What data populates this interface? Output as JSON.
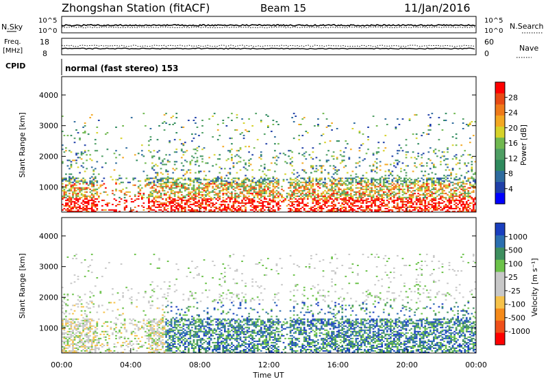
{
  "header": {
    "station": "Zhongshan Station (fitACF)",
    "beam": "Beam 15",
    "date": "11/Jan/2016"
  },
  "top_panels": {
    "nsky_label": "N.Sky",
    "nsky_ticks": [
      "10^5",
      "10^0"
    ],
    "nsearch_label": "N.Search",
    "nsearch_ticks": [
      "10^5",
      "10^0"
    ],
    "freq_label_1": "Freq.",
    "freq_label_2": "[MHz]",
    "freq_ticks": [
      "18",
      "8"
    ],
    "nave_label": "Nave",
    "nave_ticks": [
      "60",
      "0"
    ],
    "cpid_label": "CPID",
    "cpid_text": "normal (fast stereo) 153"
  },
  "chart_data": [
    {
      "type": "heatmap",
      "name": "power",
      "ylabel": "Slant Range [km]",
      "yticks": [
        1000,
        2000,
        3000,
        4000
      ],
      "ylim": [
        180,
        4600
      ],
      "xlim_hours": [
        0,
        24
      ],
      "colorbar_label": "Power [dB]",
      "colorbar_ticks": [
        "28",
        "24",
        "20",
        "16",
        "12",
        "8",
        "4"
      ],
      "colorbar_colors": [
        "#0000ff",
        "#1f3fa8",
        "#2e6b9e",
        "#2f8a5e",
        "#4e9e63",
        "#70b850",
        "#d6d22a",
        "#f3a822",
        "#ef7a1a",
        "#e84a14",
        "#ff0000"
      ]
    },
    {
      "type": "heatmap",
      "name": "velocity",
      "ylabel": "Slant Range [km]",
      "yticks": [
        1000,
        2000,
        3000,
        4000
      ],
      "ylim": [
        180,
        4600
      ],
      "xlim_hours": [
        0,
        24
      ],
      "xlabel": "Time UT",
      "xticks": [
        "00:00",
        "04:00",
        "08:00",
        "12:00",
        "16:00",
        "20:00",
        "00:00"
      ],
      "colorbar_label": "Velocity [m s⁻¹]",
      "colorbar_ticks": [
        "1000",
        "500",
        "100",
        "25",
        "-25",
        "-100",
        "-500",
        "-1000"
      ],
      "colorbar_colors": [
        "#ff0000",
        "#f0501a",
        "#f58a1a",
        "#f6c24a",
        "#c8c8c8",
        "#c8c8c8",
        "#6cc24a",
        "#3e8f5f",
        "#2b6fb0",
        "#1a3fbf"
      ]
    }
  ]
}
